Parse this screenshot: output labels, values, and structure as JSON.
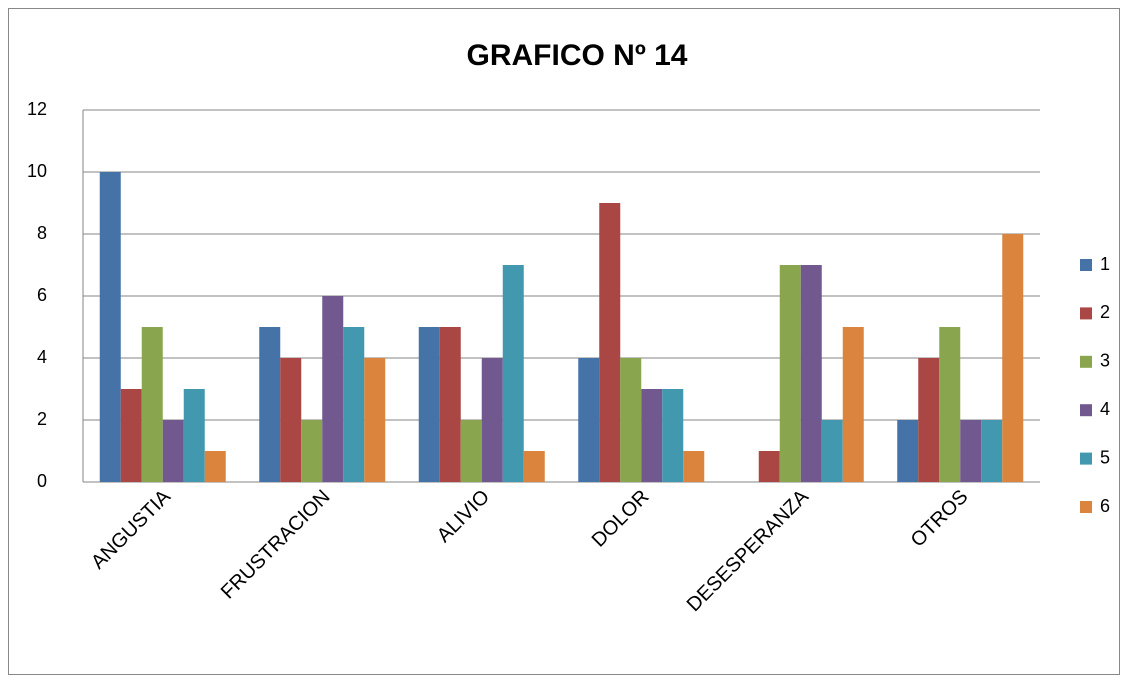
{
  "chart_data": {
    "type": "bar",
    "title": "GRAFICO Nº 14",
    "categories": [
      "ANGUSTIA",
      "FRUSTRACION",
      "ALIVIO",
      "DOLOR",
      "DESESPERANZA",
      "OTROS"
    ],
    "series": [
      {
        "name": "1",
        "color": "#4572a7",
        "values": [
          10,
          5,
          5,
          4,
          0,
          2
        ]
      },
      {
        "name": "2",
        "color": "#aa4643",
        "values": [
          3,
          4,
          5,
          9,
          1,
          4
        ]
      },
      {
        "name": "3",
        "color": "#89a54e",
        "values": [
          5,
          2,
          2,
          4,
          7,
          5
        ]
      },
      {
        "name": "4",
        "color": "#71588f",
        "values": [
          2,
          6,
          4,
          3,
          7,
          2
        ]
      },
      {
        "name": "5",
        "color": "#4198af",
        "values": [
          3,
          5,
          7,
          3,
          2,
          2
        ]
      },
      {
        "name": "6",
        "color": "#db843d",
        "values": [
          1,
          4,
          1,
          1,
          5,
          8
        ]
      }
    ],
    "ylim": [
      0,
      12
    ],
    "yticks": [
      0,
      2,
      4,
      6,
      8,
      10,
      12
    ],
    "grid": true,
    "legend": "right"
  }
}
